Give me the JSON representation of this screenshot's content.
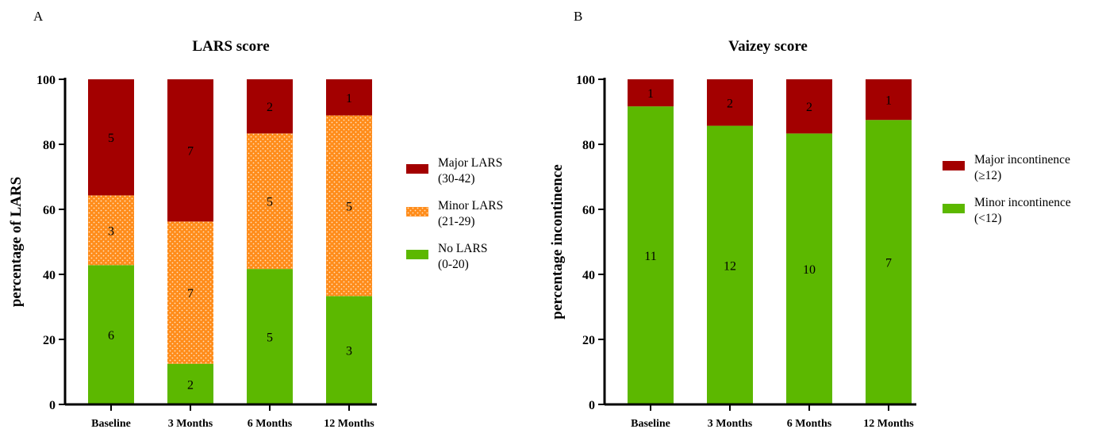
{
  "chart_data": [
    {
      "panel": "A",
      "type": "bar",
      "stacked": true,
      "title": "LARS score",
      "xlabel": "",
      "ylabel": "percentage of LARS",
      "ylim": [
        0,
        100
      ],
      "yticks": [
        0,
        20,
        40,
        60,
        80,
        100
      ],
      "categories": [
        "Baseline",
        "3 Months",
        "6 Months",
        "12 Months"
      ],
      "series": [
        {
          "name": "No LARS (0-20)",
          "legend_lines": [
            "No LARS",
            "(0-20)"
          ],
          "color": "#5cb800",
          "pattern": "solid",
          "values": [
            42.86,
            12.5,
            41.67,
            33.33
          ],
          "labels": [
            "6",
            "2",
            "5",
            "3"
          ]
        },
        {
          "name": "Minor LARS (21-29)",
          "legend_lines": [
            "Minor LARS",
            "(21-29)"
          ],
          "color": "#ff8c1a",
          "pattern": "dotted",
          "values": [
            21.43,
            43.75,
            41.67,
            55.56
          ],
          "labels": [
            "3",
            "7",
            "5",
            "5"
          ]
        },
        {
          "name": "Major LARS (30-42)",
          "legend_lines": [
            "Major LARS",
            "(30-42)"
          ],
          "color": "#a30000",
          "pattern": "solid",
          "values": [
            35.71,
            43.75,
            16.67,
            11.11
          ],
          "labels": [
            "5",
            "7",
            "2",
            "1"
          ]
        }
      ],
      "legend_position": "right"
    },
    {
      "panel": "B",
      "type": "bar",
      "stacked": true,
      "title": "Vaizey score",
      "xlabel": "",
      "ylabel": "percentage incontinence",
      "ylim": [
        0,
        100
      ],
      "yticks": [
        0,
        20,
        40,
        60,
        80,
        100
      ],
      "categories": [
        "Baseline",
        "3 Months",
        "6 Months",
        "12 Months"
      ],
      "series": [
        {
          "name": "Minor incontinence (<12)",
          "legend_lines": [
            "Minor incontinence",
            "(<12)"
          ],
          "color": "#5cb800",
          "pattern": "solid",
          "values": [
            91.67,
            85.71,
            83.33,
            87.5
          ],
          "labels": [
            "11",
            "12",
            "10",
            "7"
          ]
        },
        {
          "name": "Major incontinence (≥12)",
          "legend_lines": [
            "Major incontinence",
            "(≥12)"
          ],
          "color": "#a30000",
          "pattern": "solid",
          "values": [
            8.33,
            14.29,
            16.67,
            12.5
          ],
          "labels": [
            "1",
            "2",
            "2",
            "1"
          ]
        }
      ],
      "legend_position": "right"
    }
  ]
}
